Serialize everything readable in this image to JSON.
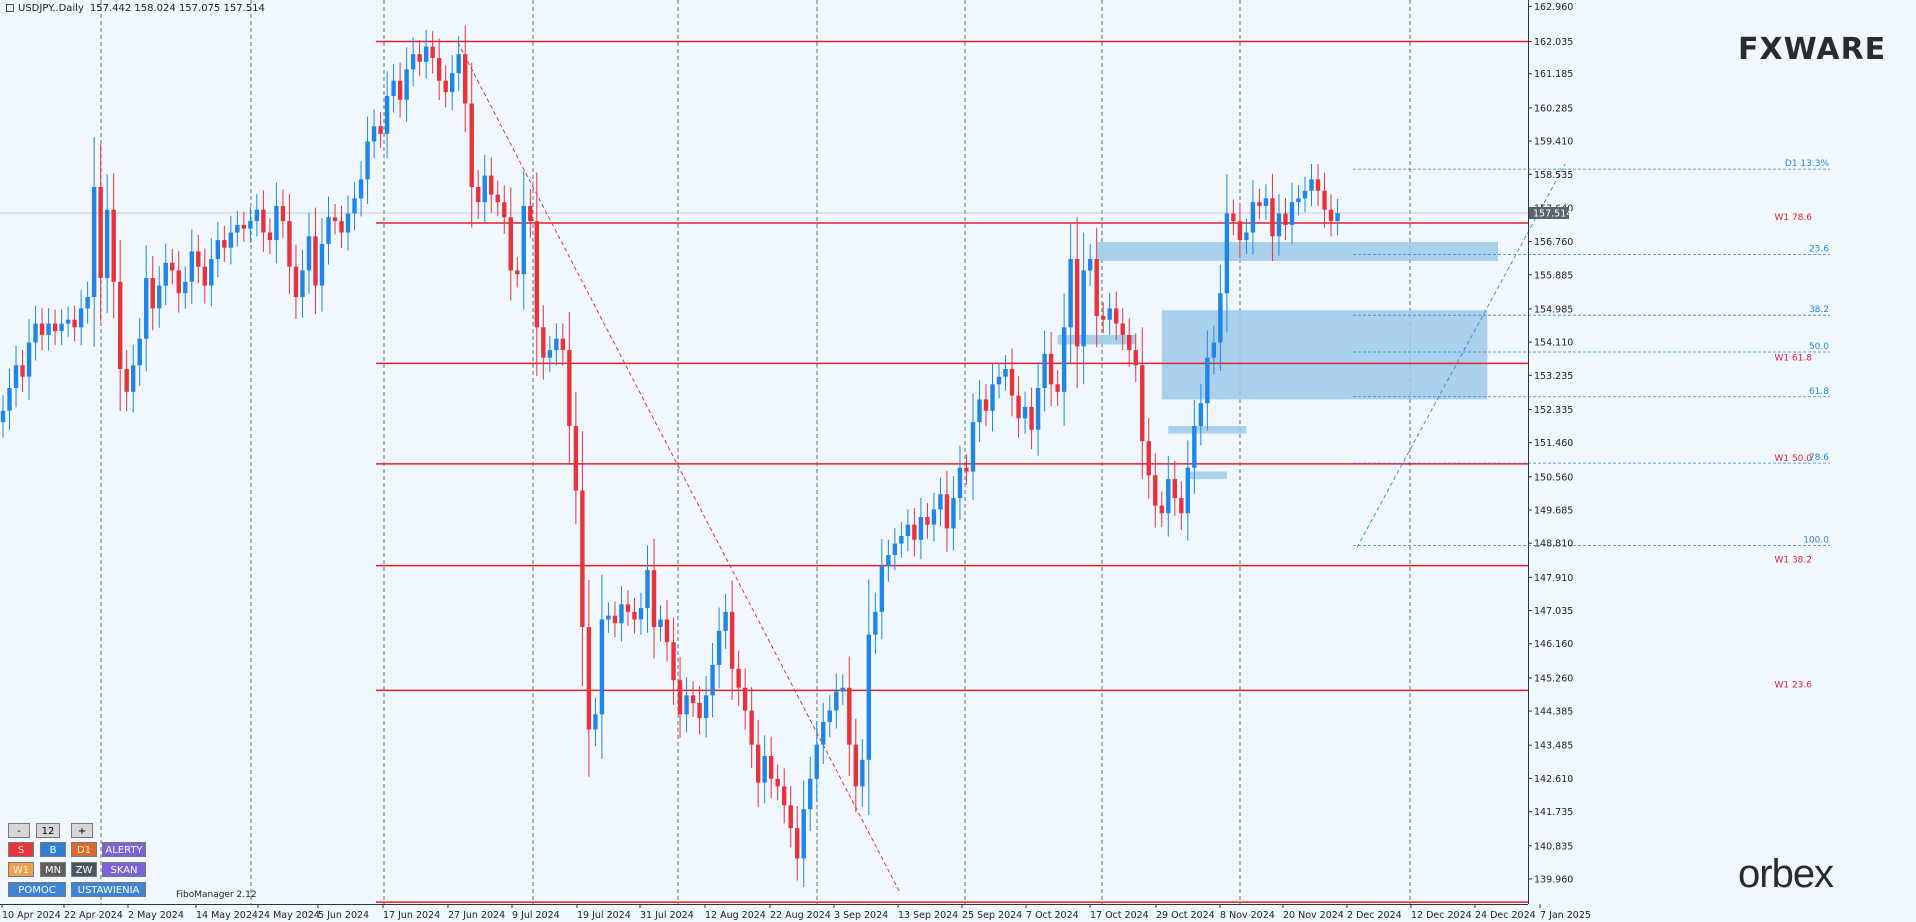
{
  "header": {
    "symbol": "USDJPY..Daily",
    "ohlc": "157.442 158.024 157.075 157.514"
  },
  "logos": {
    "top": "FXWARE",
    "bottom": "orbex"
  },
  "fibo_manager": "FiboManager 2.12",
  "panel": {
    "minus": "-",
    "value": "12",
    "plus": "+",
    "s": "S",
    "b": "B",
    "d1": "D1",
    "alerty": "ALERTY",
    "w1": "W1",
    "mn": "MN",
    "zw": "ZW",
    "skan": "SKAN",
    "pomoc": "POMOC",
    "ustawienia": "USTAWIENIA"
  },
  "colors": {
    "bull": "#1f86e6",
    "bear": "#e8323c",
    "level": "#e3202c",
    "zone": "#9ccaea",
    "fib": "#2f86d0",
    "grid": "#3a3a3a",
    "bg": "#f0f7ff"
  },
  "chart_data": {
    "type": "candlestick",
    "symbol": "USDJPY",
    "timeframe": "Daily",
    "current_price": 157.514,
    "y_range": [
      139.3,
      162.97
    ],
    "y_ticks": [
      "162.960",
      "162.035",
      "161.185",
      "160.285",
      "159.410",
      "158.535",
      "157.640",
      "156.760",
      "155.885",
      "154.985",
      "154.110",
      "153.235",
      "152.335",
      "151.460",
      "150.560",
      "149.685",
      "148.810",
      "147.910",
      "147.035",
      "146.160",
      "145.260",
      "144.385",
      "143.485",
      "142.610",
      "141.735",
      "140.835",
      "139.960"
    ],
    "x_labels": [
      "10 Apr 2024",
      "22 Apr 2024",
      "2 May 2024",
      "14 May 2024",
      "24 May 2024",
      "5 Jun 2024",
      "17 Jun 2024",
      "27 Jun 2024",
      "9 Jul 2024",
      "19 Jul 2024",
      "31 Jul 2024",
      "12 Aug 2024",
      "22 Aug 2024",
      "3 Sep 2024",
      "13 Sep 2024",
      "25 Sep 2024",
      "7 Oct 2024",
      "17 Oct 2024",
      "29 Oct 2024",
      "8 Nov 2024",
      "20 Nov 2024",
      "2 Dec 2024",
      "12 Dec 2024",
      "24 Dec 2024",
      "7 Jan 2025"
    ],
    "closes": [
      152.3,
      152.9,
      153.5,
      153.2,
      154.1,
      154.6,
      154.3,
      154.6,
      154.4,
      154.6,
      154.7,
      154.5,
      155.0,
      155.3,
      158.2,
      155.8,
      157.6,
      155.7,
      153.4,
      152.8,
      153.5,
      154.2,
      155.8,
      155.0,
      155.6,
      156.2,
      156.0,
      155.4,
      155.7,
      156.5,
      156.1,
      155.6,
      156.3,
      156.8,
      156.6,
      157.0,
      157.2,
      157.1,
      157.3,
      157.6,
      157.0,
      156.8,
      157.7,
      157.3,
      156.1,
      155.3,
      156.0,
      156.9,
      155.6,
      156.7,
      157.4,
      157.3,
      157.0,
      157.5,
      157.9,
      158.4,
      159.4,
      159.8,
      159.6,
      160.6,
      161.0,
      160.5,
      161.3,
      161.7,
      161.5,
      161.9,
      161.6,
      161.0,
      160.7,
      161.2,
      161.7,
      160.4,
      158.2,
      157.8,
      158.5,
      158.0,
      157.8,
      157.4,
      156.0,
      155.9,
      157.7,
      157.3,
      154.5,
      153.7,
      153.9,
      154.2,
      153.9,
      151.9,
      150.2,
      146.6,
      143.9,
      144.3,
      146.8,
      146.9,
      146.7,
      147.2,
      147.0,
      146.8,
      147.1,
      148.1,
      146.6,
      146.8,
      146.2,
      145.2,
      144.3,
      144.8,
      144.6,
      144.2,
      144.8,
      145.6,
      146.5,
      147.0,
      145.5,
      145.0,
      144.4,
      143.5,
      142.5,
      143.2,
      142.6,
      142.4,
      141.9,
      141.3,
      140.5,
      141.8,
      142.6,
      143.5,
      144.1,
      144.4,
      144.9,
      145.0,
      143.5,
      142.4,
      143.1,
      146.4,
      147.0,
      148.2,
      148.5,
      148.8,
      149.0,
      149.3,
      148.9,
      149.5,
      149.3,
      149.7,
      150.1,
      149.2,
      150.0,
      150.8,
      150.7,
      152.0,
      152.6,
      152.3,
      153.0,
      153.2,
      153.4,
      152.7,
      152.1,
      152.4,
      151.8,
      152.9,
      153.8,
      153.0,
      152.8,
      154.5,
      156.3,
      154.0,
      156.0,
      156.3,
      154.8,
      154.7,
      155.0,
      154.6,
      154.3,
      153.9,
      153.5,
      151.5,
      150.6,
      149.8,
      149.6,
      150.5,
      150.0,
      149.6,
      150.8,
      151.9,
      152.5,
      153.7,
      154.1,
      155.4,
      157.5,
      157.3,
      156.8,
      157.0,
      157.8,
      157.7,
      157.9,
      156.9,
      157.5,
      157.2,
      157.8,
      157.9,
      158.1,
      158.4,
      158.1,
      157.6,
      157.3,
      157.51
    ],
    "horizontal_levels": [
      {
        "price": 162.035,
        "label": ""
      },
      {
        "price": 157.25,
        "label": "W1 78.6"
      },
      {
        "price": 153.55,
        "label": "W1 61.8"
      },
      {
        "price": 150.9,
        "label": "W1 50.0"
      },
      {
        "price": 148.22,
        "label": "W1 38.2"
      },
      {
        "price": 144.93,
        "label": "W1 23.6"
      },
      {
        "price": 139.35,
        "label": ""
      }
    ],
    "fib_levels": [
      {
        "price": 158.67,
        "label": "D1 13.3%"
      },
      {
        "price": 156.42,
        "label": "23.6"
      },
      {
        "price": 154.82,
        "label": "38.2"
      },
      {
        "price": 153.85,
        "label": "50.0"
      },
      {
        "price": 152.67,
        "label": "61.8"
      },
      {
        "price": 150.92,
        "label": "78.6"
      },
      {
        "price": 148.75,
        "label": "100.0"
      }
    ],
    "zones": [
      {
        "start": 168,
        "end": 232,
        "top": 156.75,
        "bottom": 156.25
      },
      {
        "start": 178,
        "end": 228,
        "top": 154.95,
        "bottom": 152.6
      },
      {
        "start": 162,
        "end": 174,
        "top": 154.3,
        "bottom": 154.05
      },
      {
        "start": 179,
        "end": 191,
        "top": 151.9,
        "bottom": 151.7
      },
      {
        "start": 182,
        "end": 188,
        "top": 150.7,
        "bottom": 150.5
      }
    ]
  }
}
